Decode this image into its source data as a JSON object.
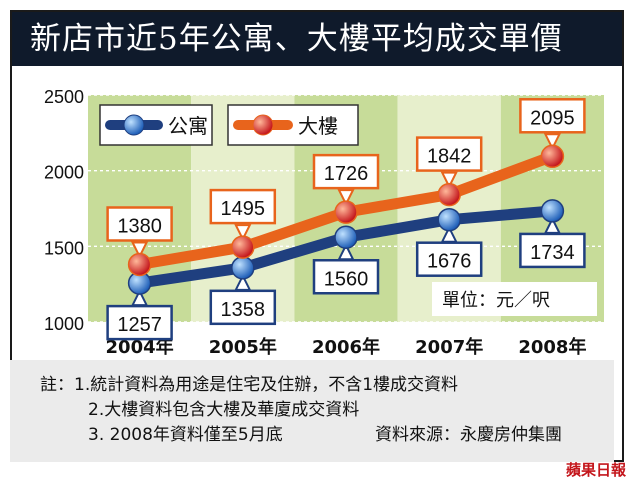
{
  "title": "新店市近5年公寓、大樓平均成交單價",
  "legend": {
    "apartment": "公寓",
    "building": "大樓"
  },
  "unit_label": "單位：元／呎",
  "notes": {
    "note1": "註：1.統計資料為用途是住宅及住辦，不含1樓成交資料",
    "note2": "2.大樓資料包含大樓及華廈成交資料",
    "note3": "3. 2008年資料僅至5月底",
    "source": "資料來源：永慶房仲集團"
  },
  "logo": "蘋果日報",
  "colors": {
    "background_stripe": "#c7dc99",
    "background_light": "#e7efcc",
    "apartment_line": "#1f3f7f",
    "building_line": "#e8641c",
    "title_bg": "#0f1a2b",
    "label_border_building": "#e8641c",
    "label_border_apartment": "#1f3f7f"
  },
  "chart_data": {
    "type": "line",
    "title": "新店市近5年公寓、大樓平均成交單價",
    "categories": [
      "2004年",
      "2005年",
      "2006年",
      "2007年",
      "2008年"
    ],
    "series": [
      {
        "name": "公寓",
        "values": [
          1257,
          1358,
          1560,
          1676,
          1734
        ]
      },
      {
        "name": "大樓",
        "values": [
          1380,
          1495,
          1726,
          1842,
          2095
        ]
      }
    ],
    "yticks": [
      1000,
      1500,
      2000,
      2500
    ],
    "ylim": [
      1000,
      2500
    ],
    "unit": "單位：元／呎",
    "grid": true,
    "legend_position": "top-left"
  }
}
